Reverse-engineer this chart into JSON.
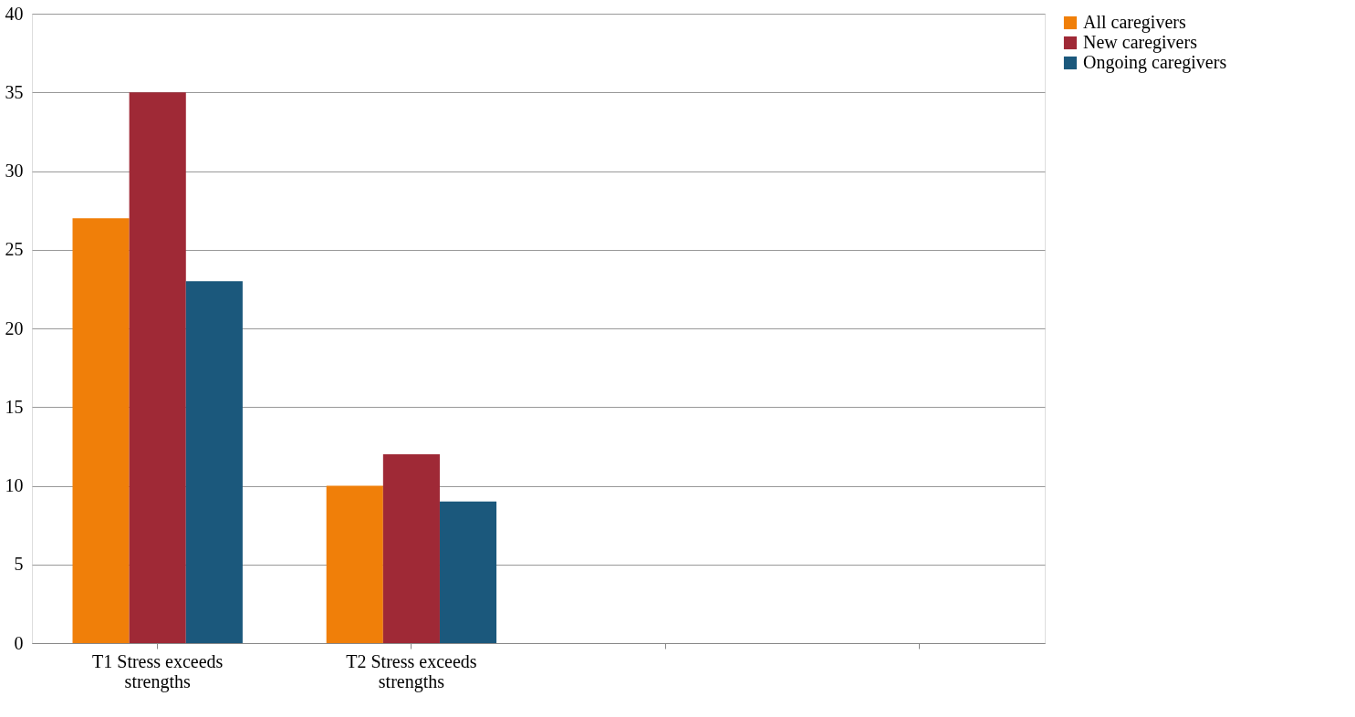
{
  "chart_data": {
    "type": "bar",
    "categories": [
      "T1 Stress exceeds strengths",
      "T2 Stress exceeds strengths",
      null,
      null
    ],
    "series": [
      {
        "name": "All  caregivers",
        "color": "#f07f09",
        "values": [
          27,
          10,
          null,
          null
        ]
      },
      {
        "name": "New caregivers",
        "color": "#9f2936",
        "values": [
          35,
          12,
          null,
          null
        ]
      },
      {
        "name": "Ongoing caregivers",
        "color": "#1b587c",
        "values": [
          23,
          9,
          null,
          null
        ]
      }
    ],
    "ylim": [
      0,
      40
    ],
    "yticks": [
      0,
      5,
      10,
      15,
      20,
      25,
      30,
      35,
      40
    ],
    "grid": "y",
    "legend": "right"
  }
}
